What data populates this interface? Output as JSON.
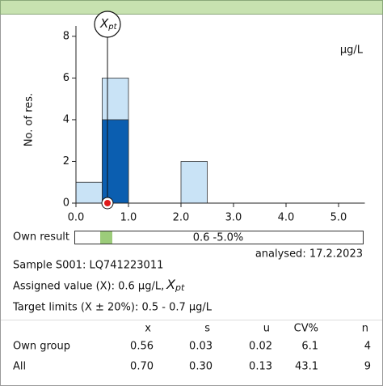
{
  "chart_data": {
    "type": "histogram",
    "ylabel": "No. of res.",
    "unit": "µg/L",
    "bins": [
      0,
      0.5,
      1.0,
      1.5,
      2.0,
      2.5,
      3.0,
      3.5,
      4.0,
      4.5,
      5.0,
      5.5
    ],
    "series": [
      {
        "color": "#c9e3f6",
        "values": [
          1,
          6,
          0,
          0,
          2,
          0,
          0,
          0,
          0,
          0,
          0
        ]
      },
      {
        "color": "#0b5eb0",
        "values": [
          0,
          4,
          0,
          0,
          0,
          0,
          0,
          0,
          0,
          0,
          0
        ]
      }
    ],
    "assigned_value": 0.6,
    "own_result": 0.6,
    "xpt_label": {
      "main": "X",
      "sub": "pt"
    },
    "xlim": [
      0,
      5.5
    ],
    "ylim": [
      0,
      8.5
    ],
    "xticks": [
      {
        "value": 0,
        "label": "0.0"
      },
      {
        "value": 1,
        "label": "1.0"
      },
      {
        "value": 2,
        "label": "2.0"
      },
      {
        "value": 3,
        "label": "3.0"
      },
      {
        "value": 4,
        "label": "4.0"
      },
      {
        "value": 5,
        "label": "5.0"
      }
    ],
    "yticks": [
      0,
      2,
      4,
      6,
      8
    ]
  },
  "own_result": {
    "label": "Own result",
    "text": "0.6  -5.0%"
  },
  "analysed": "analysed: 17.2.2023",
  "sample": "Sample S001: LQ741223011",
  "assigned": "Assigned value (X): 0.6 µg/L,",
  "target": "Target limits (X ± 20%): 0.5 - 0.7 µg/L",
  "table": {
    "header": [
      "x",
      "s",
      "u",
      "CV%",
      "n"
    ],
    "rows": [
      [
        "Own group",
        "0.56",
        "0.03",
        "0.02",
        "6.1",
        "4"
      ],
      [
        "All",
        "0.70",
        "0.30",
        "0.13",
        "43.1",
        "9"
      ]
    ]
  }
}
